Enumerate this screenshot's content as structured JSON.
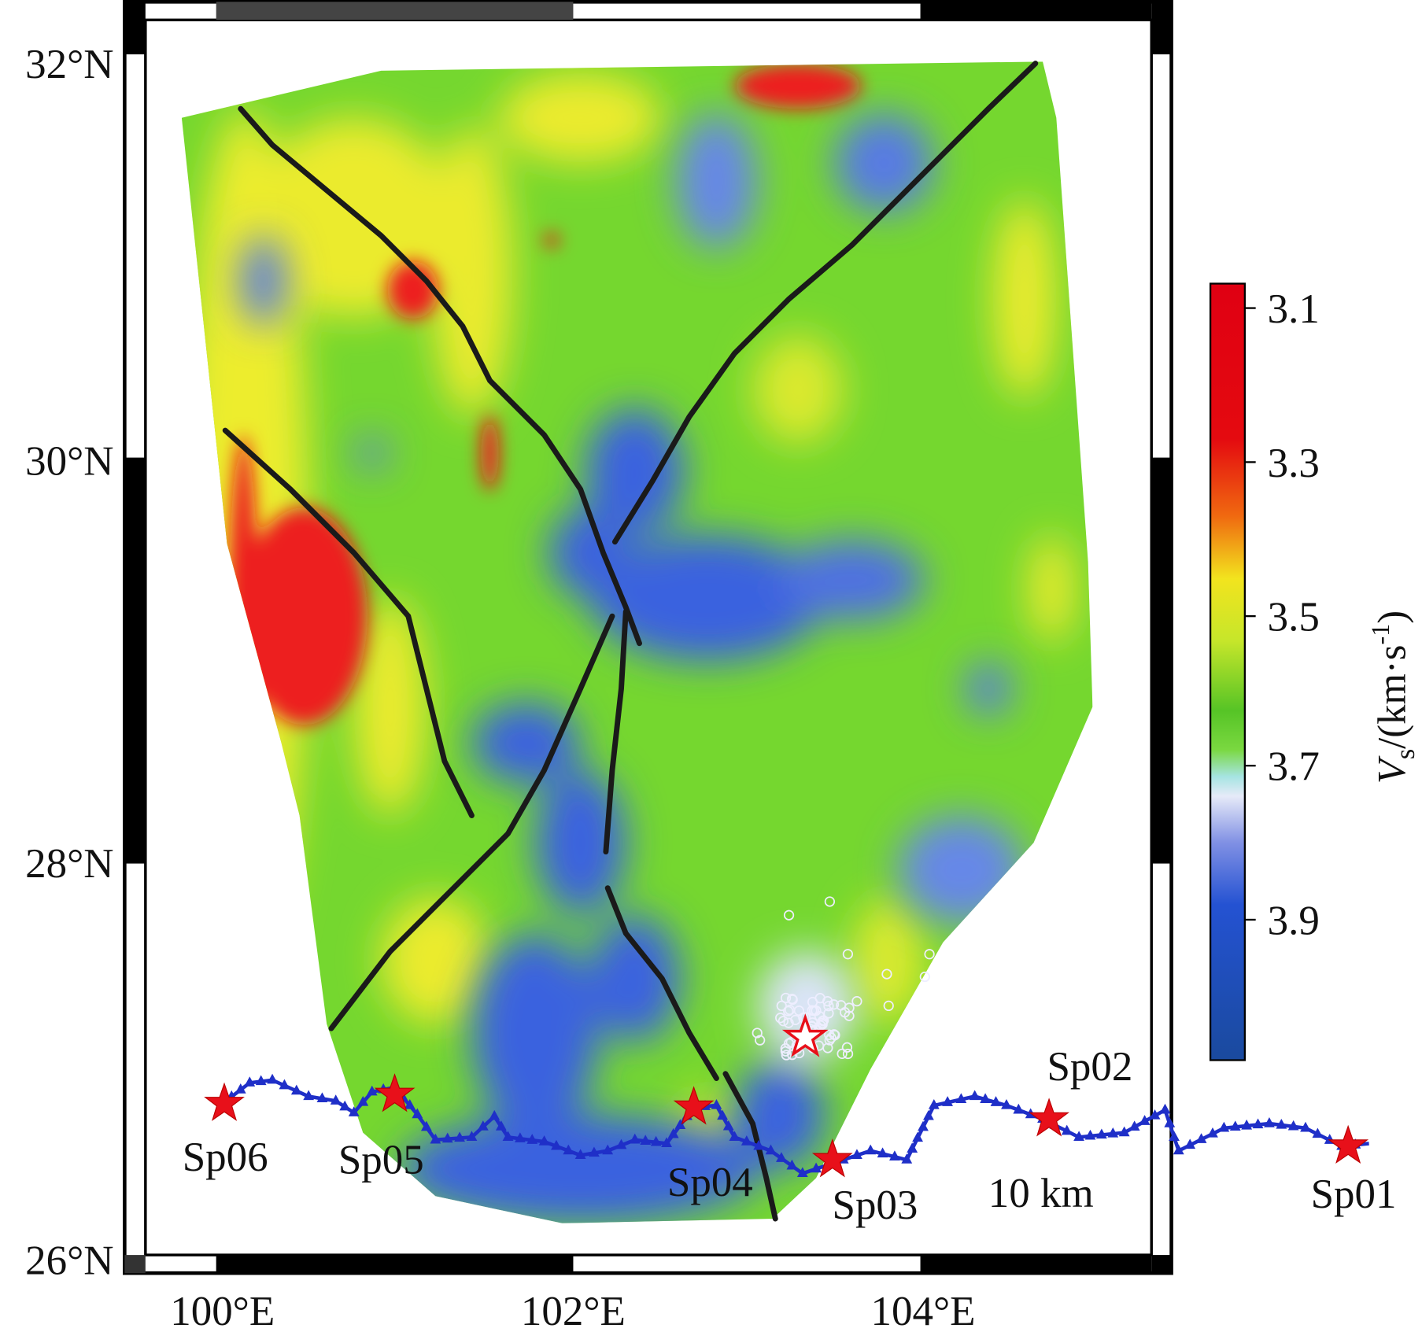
{
  "map": {
    "lat_labels": [
      "32°N",
      "30°N",
      "28°N",
      "26°N"
    ],
    "lon_labels": [
      "100°E",
      "102°E",
      "104°E"
    ],
    "colorbar": {
      "ticks": [
        "3.1",
        "3.3",
        "3.5",
        "3.7",
        "3.9"
      ],
      "label": {
        "symbol": "V",
        "subscript": "s",
        "unit": "/(km·s",
        "superscript": "-1",
        "close": ")"
      }
    },
    "stations": [
      "Sp01",
      "Sp02",
      "Sp03",
      "Sp04",
      "Sp05",
      "Sp06"
    ],
    "scale_label": "10 km"
  }
}
